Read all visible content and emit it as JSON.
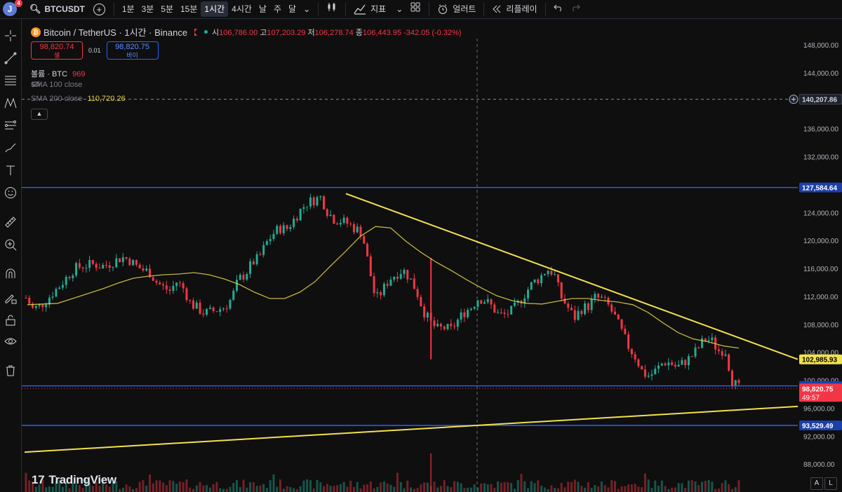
{
  "topbar": {
    "avatar_letter": "J",
    "avatar_badge": "4",
    "symbol": "BTCUSDT",
    "intervals": [
      "1분",
      "3분",
      "5분",
      "15분",
      "1시간",
      "4시간",
      "날",
      "주",
      "달"
    ],
    "active_interval": "1시간",
    "indicators_label": "지표",
    "alert_label": "얼러트",
    "replay_label": "리플레이"
  },
  "legend": {
    "pair": "Bitcoin / TetherUS · 1시간 · Binance",
    "open_label": "시",
    "open": "106,786.00",
    "high_label": "고",
    "high": "107,203.29",
    "low_label": "저",
    "low": "106,278.74",
    "close_label": "종",
    "close": "106,443.95",
    "change": "-342.05 (-0.32%)"
  },
  "trade": {
    "sell_price": "98,820.74",
    "sell_label": "셀",
    "spread": "0.01",
    "buy_price": "98,820.75",
    "buy_label": "바이"
  },
  "indicators": {
    "volume_label": "볼륨 · BTC",
    "volume_value": "969",
    "sma100_label": "SMA 100 close",
    "sma200_label": "SMA 200 close",
    "sma200_value": "110,720.26"
  },
  "watermark": "TradingView",
  "price_axis": {
    "ticks": [
      "148,000.00",
      "144,000.00",
      "140,000.00",
      "136,000.00",
      "132,000.00",
      "128,000.00",
      "124,000.00",
      "120,000.00",
      "116,000.00",
      "112,000.00",
      "108,000.00",
      "104,000.00",
      "100,000.00",
      "96,000.00",
      "92,000.00",
      "88,000.00"
    ],
    "crosshair_label": "140,207.86",
    "line_127584": "127,584.64",
    "trendline_label": "102,985.93",
    "line_99189": "99,189.88",
    "current_price": "98,820.75",
    "countdown": "49:57",
    "line_93529": "93,529.49"
  },
  "colors": {
    "up": "#22ab94",
    "down": "#f23645",
    "sma": "#e3d14a",
    "trend": "#f2e14b",
    "hline": "#2962ff",
    "bg": "#0f0f0f"
  },
  "chart_data": {
    "type": "candlestick",
    "symbol": "BTCUSDT",
    "interval": "1시간",
    "ylim": [
      86500,
      150500
    ],
    "horizontal_lines": [
      127584.64,
      99189.88,
      93529.49
    ],
    "crosshair_price": 140207.86,
    "last_price": 98820.75,
    "close_path": [
      111800,
      110200,
      110600,
      111500,
      112600,
      113600,
      114800,
      115900,
      116300,
      116500,
      116600,
      116300,
      116600,
      117100,
      117600,
      117300,
      116400,
      115800,
      115500,
      114100,
      113300,
      112800,
      114100,
      113100,
      111000,
      110300,
      109600,
      109800,
      110100,
      110500,
      111700,
      114400,
      115200,
      116800,
      117500,
      119500,
      120900,
      121800,
      121600,
      122900,
      124300,
      125400,
      125800,
      126200,
      124100,
      123000,
      122800,
      122400,
      121700,
      121200,
      116400,
      111500,
      112800,
      114500,
      115200,
      115800,
      114600,
      112700,
      109900,
      108300,
      107300,
      107500,
      107200,
      108600,
      109800,
      110500,
      111800,
      111400,
      110500,
      109300,
      109400,
      110000,
      111200,
      112700,
      114000,
      114700,
      115900,
      115400,
      112000,
      110500,
      108900,
      110200,
      110600,
      111800,
      111600,
      110600,
      108900,
      106700,
      104600,
      103200,
      101000,
      100600,
      101500,
      102600,
      102500,
      101800,
      102600,
      103300,
      104500,
      105900,
      105700,
      104200,
      104400,
      100000,
      98820
    ],
    "sma_path": [
      110800,
      110900,
      111000,
      111700,
      112400,
      113100,
      113900,
      114600,
      114900,
      115100,
      115200,
      115400,
      115100,
      114500,
      113700,
      112600,
      111700,
      111700,
      112600,
      114100,
      116300,
      118400,
      120600,
      122000,
      121800,
      119900,
      118300,
      116900,
      115700,
      114400,
      113200,
      112100,
      111400,
      111000,
      110900,
      111300,
      111700,
      111700,
      111400,
      111200,
      110800,
      109700,
      108200,
      106800,
      105900,
      105500,
      104900,
      104600
    ]
  }
}
